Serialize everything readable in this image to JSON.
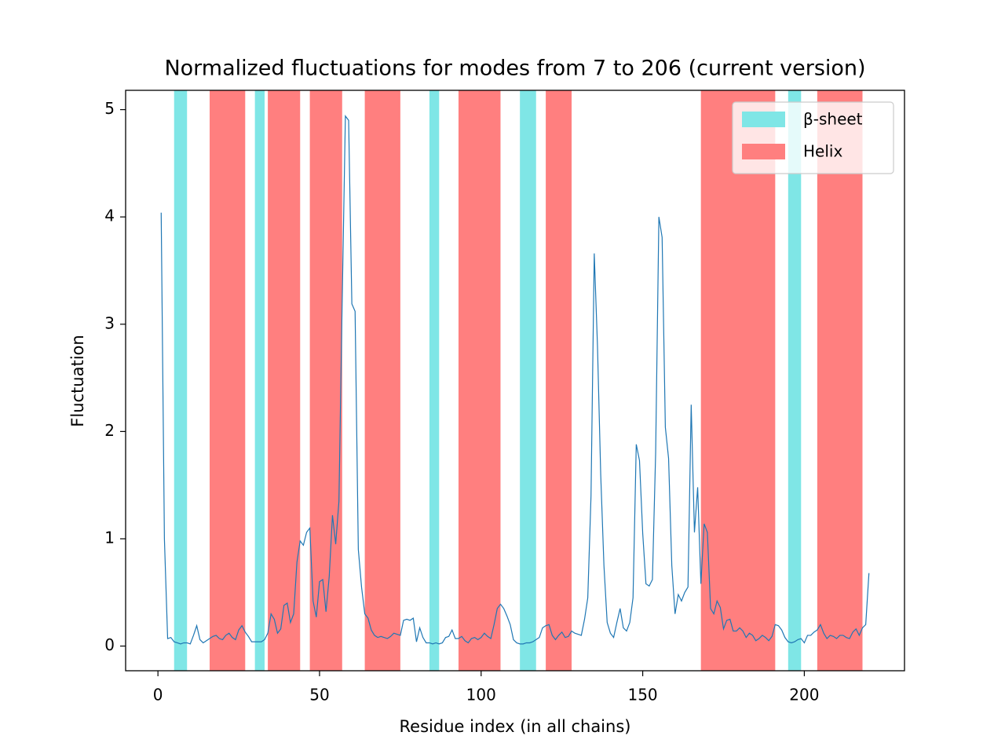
{
  "chart_data": {
    "type": "line",
    "title": "Normalized fluctuations for modes from 7 to 206 (current version)",
    "xlabel": "Residue index (in all chains)",
    "ylabel": "Fluctuation",
    "xlim": [
      -10,
      231
    ],
    "ylim": [
      -0.23,
      5.18
    ],
    "xticks": [
      0,
      50,
      100,
      150,
      200
    ],
    "yticks": [
      0,
      1,
      2,
      3,
      4,
      5
    ],
    "legend": "upper right",
    "color": "#1f77b4",
    "spans": [
      {
        "name": "β-sheet",
        "color": "#7fe6e6",
        "ranges": [
          [
            5,
            9
          ],
          [
            30,
            33
          ],
          [
            84,
            87
          ],
          [
            112,
            117
          ],
          [
            195,
            199
          ]
        ]
      },
      {
        "name": "Helix",
        "color": "#ff7f7f",
        "ranges": [
          [
            16,
            27
          ],
          [
            34,
            44
          ],
          [
            47,
            57
          ],
          [
            64,
            75
          ],
          [
            93,
            106
          ],
          [
            120,
            128
          ],
          [
            168,
            191
          ],
          [
            204,
            218
          ]
        ]
      }
    ],
    "x": [
      1,
      2,
      3,
      4,
      5,
      6,
      7,
      8,
      9,
      10,
      11,
      12,
      13,
      14,
      15,
      16,
      17,
      18,
      19,
      20,
      21,
      22,
      23,
      24,
      25,
      26,
      27,
      28,
      29,
      30,
      31,
      32,
      33,
      34,
      35,
      36,
      37,
      38,
      39,
      40,
      41,
      42,
      43,
      44,
      45,
      46,
      47,
      48,
      49,
      50,
      51,
      52,
      53,
      54,
      55,
      56,
      57,
      58,
      59,
      60,
      61,
      62,
      63,
      64,
      65,
      66,
      67,
      68,
      69,
      70,
      71,
      72,
      73,
      74,
      75,
      76,
      77,
      78,
      79,
      80,
      81,
      82,
      83,
      84,
      85,
      86,
      87,
      88,
      89,
      90,
      91,
      92,
      93,
      94,
      95,
      96,
      97,
      98,
      99,
      100,
      101,
      102,
      103,
      104,
      105,
      106,
      107,
      108,
      109,
      110,
      111,
      112,
      113,
      114,
      115,
      116,
      117,
      118,
      119,
      120,
      121,
      122,
      123,
      124,
      125,
      126,
      127,
      128,
      129,
      130,
      131,
      132,
      133,
      134,
      135,
      136,
      137,
      138,
      139,
      140,
      141,
      142,
      143,
      144,
      145,
      146,
      147,
      148,
      149,
      150,
      151,
      152,
      153,
      154,
      155,
      156,
      157,
      158,
      159,
      160,
      161,
      162,
      163,
      164,
      165,
      166,
      167,
      168,
      169,
      170,
      171,
      172,
      173,
      174,
      175,
      176,
      177,
      178,
      179,
      180,
      181,
      182,
      183,
      184,
      185,
      186,
      187,
      188,
      189,
      190,
      191,
      192,
      193,
      194,
      195,
      196,
      197,
      198,
      199,
      200,
      201,
      202,
      203,
      204,
      205,
      206,
      207,
      208,
      209,
      210,
      211,
      212,
      213,
      214,
      215,
      216,
      217,
      218,
      219,
      220
    ],
    "values": [
      4.04,
      1.0,
      0.07,
      0.08,
      0.04,
      0.03,
      0.02,
      0.03,
      0.03,
      0.02,
      0.1,
      0.19,
      0.06,
      0.03,
      0.05,
      0.07,
      0.09,
      0.1,
      0.07,
      0.06,
      0.1,
      0.12,
      0.08,
      0.06,
      0.15,
      0.19,
      0.13,
      0.09,
      0.04,
      0.04,
      0.04,
      0.04,
      0.06,
      0.12,
      0.3,
      0.25,
      0.12,
      0.16,
      0.38,
      0.4,
      0.22,
      0.3,
      0.78,
      0.98,
      0.94,
      1.06,
      1.1,
      0.42,
      0.27,
      0.6,
      0.62,
      0.32,
      0.65,
      1.22,
      0.95,
      1.35,
      3.2,
      4.94,
      4.9,
      3.19,
      3.12,
      0.9,
      0.55,
      0.3,
      0.26,
      0.15,
      0.1,
      0.08,
      0.09,
      0.08,
      0.07,
      0.09,
      0.12,
      0.11,
      0.1,
      0.24,
      0.25,
      0.24,
      0.26,
      0.04,
      0.17,
      0.08,
      0.03,
      0.03,
      0.02,
      0.03,
      0.02,
      0.03,
      0.08,
      0.09,
      0.15,
      0.07,
      0.07,
      0.09,
      0.05,
      0.03,
      0.07,
      0.08,
      0.06,
      0.08,
      0.12,
      0.09,
      0.07,
      0.2,
      0.35,
      0.39,
      0.35,
      0.28,
      0.2,
      0.06,
      0.03,
      0.02,
      0.02,
      0.03,
      0.03,
      0.04,
      0.06,
      0.08,
      0.17,
      0.19,
      0.2,
      0.1,
      0.06,
      0.1,
      0.13,
      0.08,
      0.09,
      0.14,
      0.12,
      0.11,
      0.1,
      0.25,
      0.45,
      1.4,
      3.66,
      2.8,
      1.6,
      0.75,
      0.22,
      0.12,
      0.08,
      0.22,
      0.35,
      0.17,
      0.14,
      0.22,
      0.45,
      1.88,
      1.73,
      1.05,
      0.58,
      0.56,
      0.62,
      1.8,
      4.0,
      3.81,
      2.04,
      1.75,
      0.75,
      0.3,
      0.48,
      0.42,
      0.5,
      0.55,
      2.25,
      1.06,
      1.48,
      0.58,
      1.14,
      1.06,
      0.35,
      0.3,
      0.42,
      0.36,
      0.16,
      0.24,
      0.25,
      0.14,
      0.14,
      0.17,
      0.14,
      0.08,
      0.12,
      0.1,
      0.05,
      0.07,
      0.1,
      0.08,
      0.05,
      0.09,
      0.2,
      0.19,
      0.15,
      0.08,
      0.04,
      0.03,
      0.04,
      0.06,
      0.07,
      0.03,
      0.1,
      0.1,
      0.13,
      0.15,
      0.2,
      0.12,
      0.07,
      0.1,
      0.09,
      0.07,
      0.1,
      0.1,
      0.08,
      0.07,
      0.13,
      0.16,
      0.1,
      0.17,
      0.2,
      0.68
    ]
  }
}
